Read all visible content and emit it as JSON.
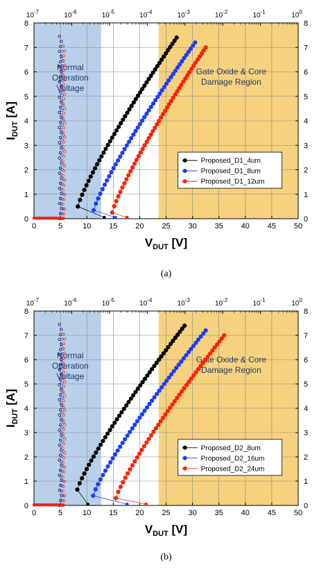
{
  "chart_data": [
    {
      "type": "scatter",
      "caption": "(a)",
      "xlabel": "V",
      "xlabel_sub": "DUT",
      "xlabel_unit": " [V]",
      "ylabel": "I",
      "ylabel_sub": "DUT",
      "ylabel_unit": " [A]",
      "xlim": [
        0,
        50
      ],
      "ylim": [
        0,
        8
      ],
      "x_ticks": [
        "0",
        "5",
        "10",
        "15",
        "20",
        "25",
        "30",
        "35",
        "40",
        "45",
        "50"
      ],
      "y_ticks": [
        "0",
        "1",
        "2",
        "3",
        "4",
        "5",
        "6",
        "7",
        "8"
      ],
      "top_axis": {
        "scale": "log",
        "ticks": [
          "10",
          "10",
          "10",
          "10",
          "10",
          "10",
          "10",
          "10"
        ],
        "exponents": [
          "-7",
          "-6",
          "-5",
          "-4",
          "-3",
          "-2",
          "-1",
          "0"
        ]
      },
      "grid": true,
      "normal_region": {
        "label_lines": [
          "Normal",
          "Operation",
          "Voltage"
        ],
        "xrange": [
          0,
          12.7
        ],
        "color": "#b8d0ea"
      },
      "damage_region": {
        "label_lines": [
          "Gate Oxide & Core",
          "Damage Region"
        ],
        "xrange": [
          23.6,
          50
        ],
        "color": "#f6d27e"
      },
      "legend_position": "center-right",
      "series": [
        {
          "name": "Proposed_D1_4um",
          "color": "#000000",
          "trigger": [
            8.3,
            0.5
          ],
          "end": [
            27.0,
            7.4
          ],
          "leak_v": 5.0,
          "leak_left": [
            0,
            5.0
          ],
          "snap_from": [
            13.3,
            0.0
          ],
          "curve_shape": 0.85
        },
        {
          "name": "Proposed_D1_8um",
          "color": "#1a3cff",
          "trigger": [
            11.3,
            0.35
          ],
          "end": [
            30.5,
            7.2
          ],
          "leak_v": 5.3,
          "leak_left": [
            0,
            5.3
          ],
          "snap_from": [
            15.4,
            0.0
          ],
          "curve_shape": 0.85
        },
        {
          "name": "Proposed_D1_12um",
          "color": "#ff2000",
          "trigger": [
            14.8,
            0.25
          ],
          "end": [
            32.5,
            7.0
          ],
          "leak_v": 5.6,
          "leak_left": [
            0,
            5.6
          ],
          "snap_from": [
            17.6,
            0.0
          ],
          "curve_shape": 0.85
        }
      ]
    },
    {
      "type": "scatter",
      "caption": "(b)",
      "xlabel": "V",
      "xlabel_sub": "DUT",
      "xlabel_unit": " [V]",
      "ylabel": "I",
      "ylabel_sub": "DUT",
      "ylabel_unit": " [A]",
      "xlim": [
        0,
        50
      ],
      "ylim": [
        0,
        8
      ],
      "x_ticks": [
        "0",
        "5",
        "10",
        "15",
        "20",
        "25",
        "30",
        "35",
        "40",
        "45",
        "50"
      ],
      "y_ticks": [
        "0",
        "1",
        "2",
        "3",
        "4",
        "5",
        "6",
        "7",
        "8"
      ],
      "top_axis": {
        "scale": "log",
        "ticks": [
          "10",
          "10",
          "10",
          "10",
          "10",
          "10",
          "10",
          "10"
        ],
        "exponents": [
          "-7",
          "-6",
          "-5",
          "-4",
          "-3",
          "-2",
          "-1",
          "0"
        ]
      },
      "grid": true,
      "normal_region": {
        "label_lines": [
          "Normal",
          "Operation",
          "Voltage"
        ],
        "xrange": [
          0,
          12.7
        ],
        "color": "#b8d0ea"
      },
      "damage_region": {
        "label_lines": [
          "Gate Oxide & Core",
          "Damage Region"
        ],
        "xrange": [
          23.6,
          50
        ],
        "color": "#f6d27e"
      },
      "legend_position": "center-right",
      "series": [
        {
          "name": "Proposed_D2_8um",
          "color": "#000000",
          "trigger": [
            8.2,
            0.65
          ],
          "end": [
            28.5,
            7.4
          ],
          "leak_v": 5.0,
          "leak_left": [
            0,
            5.0
          ],
          "snap_from": [
            10.2,
            0.0
          ],
          "curve_shape": 0.85
        },
        {
          "name": "Proposed_D2_16um",
          "color": "#1a3cff",
          "trigger": [
            11.2,
            0.4
          ],
          "end": [
            32.5,
            7.2
          ],
          "leak_v": 5.3,
          "leak_left": [
            0,
            5.3
          ],
          "snap_from": [
            17.6,
            0.0
          ],
          "curve_shape": 0.85
        },
        {
          "name": "Proposed_D2_24um",
          "color": "#ff2000",
          "trigger": [
            15.5,
            0.3
          ],
          "end": [
            36.0,
            7.0
          ],
          "leak_v": 5.6,
          "leak_left": [
            0,
            5.6
          ],
          "snap_from": [
            21.2,
            0.0
          ],
          "curve_shape": 0.85
        }
      ]
    }
  ]
}
